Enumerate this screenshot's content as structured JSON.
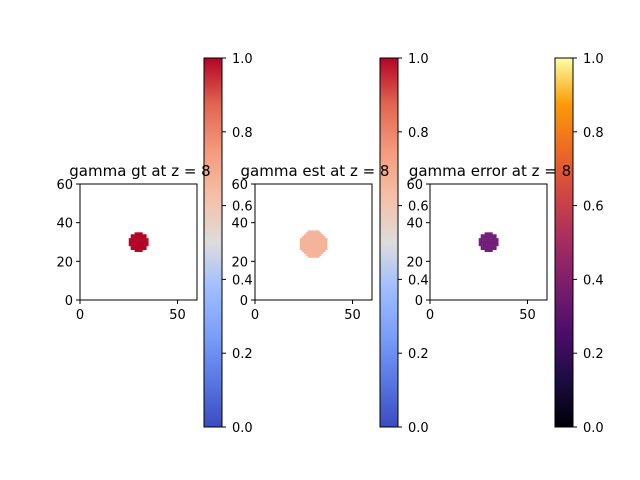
{
  "chart_data": [
    {
      "type": "heatmap",
      "title": "gamma gt at z = 8",
      "xticks": [
        0,
        50
      ],
      "yticks": [
        0,
        20,
        40,
        60
      ],
      "xlim": [
        0,
        60
      ],
      "ylim": [
        0,
        60
      ],
      "blob": {
        "cx": 30,
        "cy": 30,
        "r": 5,
        "value": 1.0,
        "color": "#b40426"
      },
      "colorbar": {
        "cmap": "coolwarm",
        "range": [
          0,
          1
        ],
        "ticks": [
          "0.0",
          "0.2",
          "0.4",
          "0.6",
          "0.8",
          "1.0"
        ]
      }
    },
    {
      "type": "heatmap",
      "title": "gamma est at z = 8",
      "xticks": [
        0,
        50
      ],
      "yticks": [
        0,
        20,
        40,
        60
      ],
      "xlim": [
        0,
        60
      ],
      "ylim": [
        0,
        60
      ],
      "blob": {
        "cx": 30,
        "cy": 29,
        "r": 7,
        "value": 0.7,
        "color": "#f4b49b"
      },
      "colorbar": {
        "cmap": "coolwarm",
        "range": [
          0,
          1
        ],
        "ticks": [
          "0.0",
          "0.2",
          "0.4",
          "0.6",
          "0.8",
          "1.0"
        ]
      }
    },
    {
      "type": "heatmap",
      "title": "gamma error at z = 8",
      "xticks": [
        0,
        50
      ],
      "yticks": [
        0,
        20,
        40,
        60
      ],
      "xlim": [
        0,
        60
      ],
      "ylim": [
        0,
        60
      ],
      "blob": {
        "cx": 30,
        "cy": 30,
        "r": 5,
        "value": 0.3,
        "color": "#731f7a"
      },
      "colorbar": {
        "cmap": "inferno",
        "range": [
          0,
          1
        ],
        "ticks": [
          "0.0",
          "0.2",
          "0.4",
          "0.6",
          "0.8",
          "1.0"
        ]
      }
    }
  ]
}
